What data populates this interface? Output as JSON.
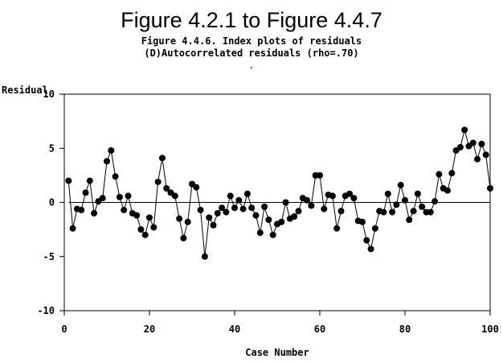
{
  "figure": {
    "main_title": "Figure 4.2.1 to Figure 4.4.7",
    "subtitle_line1": "Figure 4.4.6. Index plots of residuals",
    "subtitle_line2": "(D)Autocorrelated residuals (rho=.70)",
    "stray_mark": ","
  },
  "chart_data": {
    "type": "line",
    "title": "Figure 4.4.6. Index plots of residuals",
    "subtitle": "(D)Autocorrelated residuals (rho=.70)",
    "xlabel": "Case Number",
    "ylabel": "Residual",
    "xlim": [
      0,
      100
    ],
    "ylim": [
      -10,
      10
    ],
    "x_ticks": [
      0,
      20,
      40,
      60,
      80,
      100
    ],
    "y_ticks": [
      -10,
      -5,
      0,
      5,
      10
    ],
    "reference_line_y": 0,
    "grid": false,
    "legend": "none",
    "marker": "filled-circle",
    "color": "#000000",
    "series": [
      {
        "x": [
          1,
          2,
          3,
          4,
          5,
          6,
          7,
          8,
          9,
          10,
          11,
          12,
          13,
          14,
          15,
          16,
          17,
          18,
          19,
          20,
          21,
          22,
          23,
          24,
          25,
          26,
          27,
          28,
          29,
          30,
          31,
          32,
          33,
          34,
          35,
          36,
          37,
          38,
          39,
          40,
          41,
          42,
          43,
          44,
          45,
          46,
          47,
          48,
          49,
          50,
          51,
          52,
          53,
          54,
          55,
          56,
          57,
          58,
          59,
          60,
          61,
          62,
          63,
          64,
          65,
          66,
          67,
          68,
          69,
          70,
          71,
          72,
          73,
          74,
          75,
          76,
          77,
          78,
          79,
          80,
          81,
          82,
          83,
          84,
          85,
          86,
          87,
          88,
          89,
          90,
          91,
          92,
          93,
          94,
          95,
          96,
          97,
          98,
          99,
          100
        ],
        "y": [
          2.0,
          -2.4,
          -0.6,
          -0.7,
          0.9,
          2.0,
          -1.0,
          0.1,
          0.4,
          3.8,
          4.8,
          2.4,
          0.5,
          -0.7,
          0.6,
          -1.0,
          -1.2,
          -2.5,
          -3.0,
          -1.4,
          -2.3,
          1.9,
          4.1,
          1.3,
          0.9,
          0.6,
          -1.5,
          -3.3,
          -1.8,
          1.7,
          1.4,
          -0.7,
          -5.0,
          -1.4,
          -2.1,
          -1.0,
          -0.5,
          -0.9,
          0.6,
          -0.5,
          0.2,
          -0.6,
          0.8,
          -0.5,
          -1.2,
          -2.8,
          -0.4,
          -1.6,
          -3.0,
          -2.0,
          -1.8,
          0.0,
          -1.5,
          -1.3,
          -0.8,
          0.4,
          0.2,
          -0.3,
          2.5,
          2.5,
          -0.6,
          0.7,
          0.6,
          -2.4,
          -0.8,
          0.6,
          0.8,
          0.4,
          -1.7,
          -1.8,
          -3.5,
          -4.3,
          -2.4,
          -0.8,
          -0.9,
          0.8,
          -0.9,
          -0.2,
          1.6,
          0.2,
          -1.6,
          -0.8,
          0.8,
          -0.4,
          -0.9,
          -0.9,
          0.1,
          2.6,
          1.3,
          1.1,
          2.7,
          4.8,
          5.1,
          6.7,
          5.2,
          5.5,
          4.0,
          5.4,
          4.4,
          1.3
        ]
      }
    ]
  }
}
